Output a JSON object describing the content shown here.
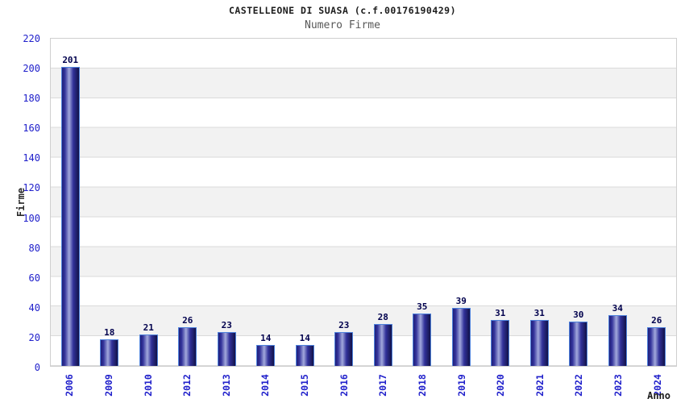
{
  "chart_data": {
    "type": "bar",
    "title": "CASTELLEONE DI SUASA (c.f.00176190429)",
    "subtitle": "Numero Firme",
    "xlabel": "Anno",
    "ylabel": "Firme",
    "categories": [
      "2006",
      "2009",
      "2010",
      "2012",
      "2013",
      "2014",
      "2015",
      "2016",
      "2017",
      "2018",
      "2019",
      "2020",
      "2021",
      "2022",
      "2023",
      "2024"
    ],
    "values": [
      201,
      18,
      21,
      26,
      23,
      14,
      14,
      23,
      28,
      35,
      39,
      31,
      31,
      30,
      34,
      26
    ],
    "ylim": [
      0,
      220
    ],
    "ytick_step": 20,
    "grid": "horizontal-bands-alternating",
    "legend": "none",
    "colors": {
      "bar_border": "#4e82dc",
      "bar_dark": "#20207a",
      "bar_light": "#a2a8dc",
      "axis_tick_text": "#2020cb",
      "value_label_text": "#00004d",
      "band_gray": "#f2f2f2",
      "gridline": "#dadada",
      "plot_border": "#cfcfcf",
      "title_text": "#1c1c1c",
      "subtitle_text": "#585858"
    }
  }
}
